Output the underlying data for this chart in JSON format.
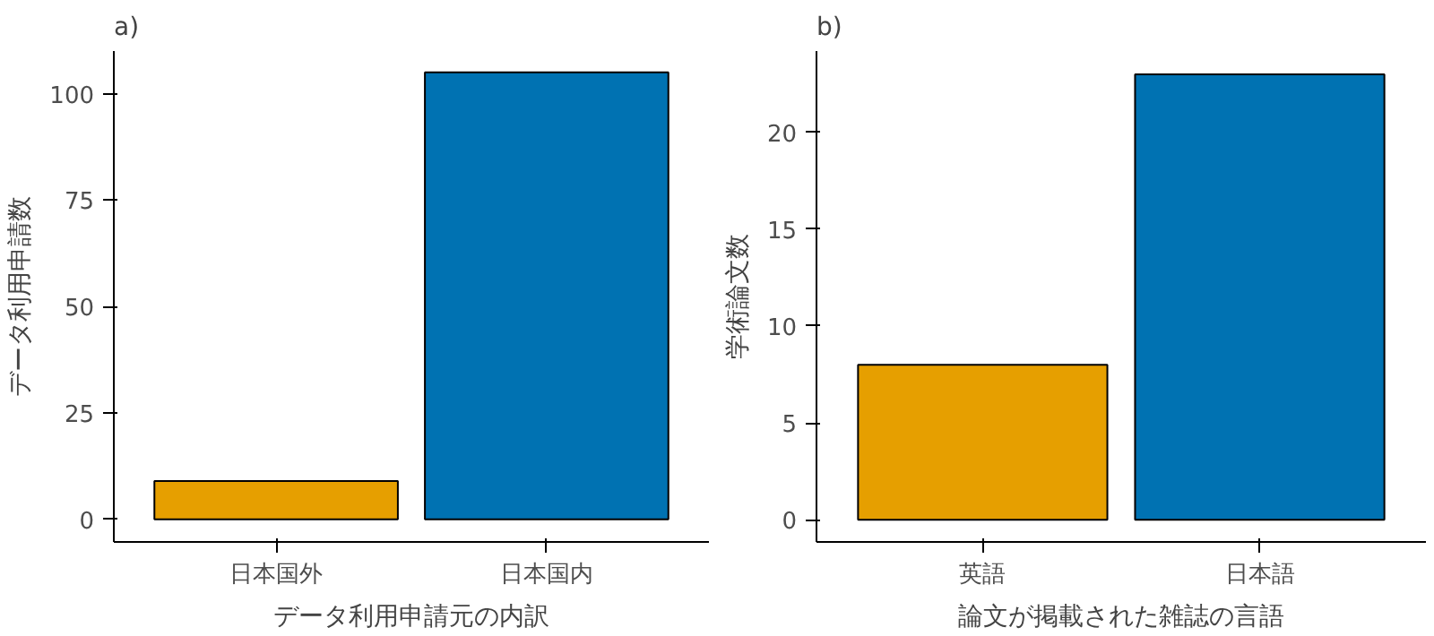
{
  "chart_data": [
    {
      "type": "bar",
      "title": "a)",
      "xlabel": "データ利用申請元の内訳",
      "ylabel": "データ利用申請数",
      "categories": [
        "日本国外",
        "日本国内"
      ],
      "values": [
        9,
        105
      ],
      "colors": [
        "#e69f00",
        "#0072b2"
      ],
      "ylim": [
        -5.3,
        110
      ],
      "yticks": [
        0,
        25,
        50,
        75,
        100
      ],
      "grid": false
    },
    {
      "type": "bar",
      "title": "b)",
      "xlabel": "論文が掲載された雑誌の言語",
      "ylabel": "学術論文数",
      "categories": [
        "英語",
        "日本語"
      ],
      "values": [
        8,
        23
      ],
      "colors": [
        "#e69f00",
        "#0072b2"
      ],
      "ylim": [
        -1.15,
        24.2
      ],
      "yticks": [
        0,
        5,
        10,
        15,
        20
      ],
      "grid": false
    }
  ]
}
